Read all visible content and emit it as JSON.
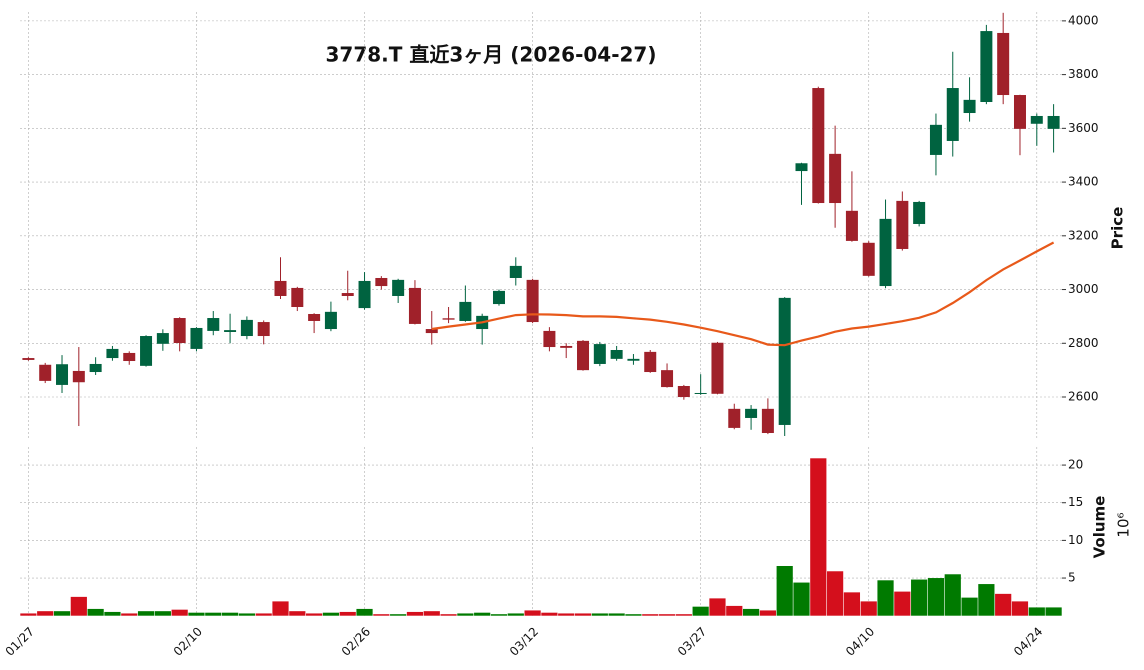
{
  "chart_data": {
    "type": "candlestick",
    "title": "3778.T  直近3ヶ月  (2026-04-27)",
    "categories": [
      "01/27",
      null,
      null,
      null,
      null,
      null,
      null,
      null,
      null,
      null,
      "02/10",
      null,
      null,
      null,
      null,
      null,
      null,
      null,
      null,
      null,
      "02/26",
      null,
      null,
      null,
      null,
      null,
      null,
      null,
      null,
      null,
      "03/12",
      null,
      null,
      null,
      null,
      null,
      null,
      null,
      null,
      null,
      "03/27",
      null,
      null,
      null,
      null,
      null,
      null,
      null,
      null,
      null,
      "04/10",
      null,
      null,
      null,
      null,
      null,
      null,
      null,
      null,
      null,
      "04/24",
      null
    ],
    "open": [
      2745,
      2720,
      2645,
      2697,
      2693,
      2745,
      2764,
      2716,
      2798,
      2894,
      2779,
      2846,
      2842,
      2827,
      2879,
      3032,
      3006,
      2909,
      2853,
      2987,
      2931,
      3043,
      2976,
      3006,
      2853,
      2893,
      2883,
      2853,
      2946,
      3043,
      3036,
      2846,
      2790,
      2809,
      2723,
      2742,
      2735,
      2768,
      2700,
      2641,
      2612,
      2802,
      2556,
      2522,
      2556,
      2496,
      3441,
      3750,
      3505,
      3293,
      3174,
      3013,
      3330,
      3244,
      3501,
      3553,
      3657,
      3698,
      3955,
      3724,
      3617,
      3598
    ],
    "high": [
      2748,
      2727,
      2756,
      2786,
      2748,
      2790,
      2770,
      2830,
      2852,
      2897,
      2860,
      2920,
      2910,
      2900,
      2885,
      3120,
      3010,
      2912,
      2955,
      3070,
      3065,
      3050,
      3040,
      3035,
      2920,
      2935,
      3015,
      2910,
      3000,
      3120,
      3040,
      2860,
      2800,
      2812,
      2805,
      2790,
      2760,
      2775,
      2725,
      2645,
      2685,
      2805,
      2575,
      2570,
      2595,
      2972,
      3472,
      3755,
      3610,
      3440,
      3180,
      3335,
      3365,
      3330,
      3655,
      3885,
      3790,
      3985,
      4030,
      3725,
      3655,
      3690
    ],
    "low": [
      2735,
      2652,
      2615,
      2492,
      2682,
      2735,
      2720,
      2713,
      2772,
      2770,
      2770,
      2830,
      2800,
      2815,
      2796,
      2965,
      2920,
      2838,
      2845,
      2960,
      2925,
      3000,
      2950,
      2870,
      2795,
      2875,
      2880,
      2795,
      2940,
      3015,
      2875,
      2770,
      2745,
      2698,
      2715,
      2735,
      2720,
      2690,
      2635,
      2590,
      2608,
      2610,
      2480,
      2478,
      2462,
      2455,
      3315,
      3320,
      3230,
      3178,
      3048,
      3005,
      3145,
      3235,
      3425,
      3495,
      3625,
      3690,
      3690,
      3500,
      3535,
      3510
    ],
    "close": [
      2738,
      2660,
      2722,
      2655,
      2723,
      2779,
      2734,
      2827,
      2838,
      2801,
      2857,
      2894,
      2849,
      2887,
      2827,
      2976,
      2935,
      2883,
      2917,
      2976,
      3032,
      3013,
      3036,
      2872,
      2838,
      2888,
      2954,
      2902,
      2995,
      3088,
      2879,
      2786,
      2783,
      2700,
      2797,
      2775,
      2742,
      2693,
      2637,
      2600,
      2615,
      2612,
      2485,
      2556,
      2466,
      2969,
      3470,
      3322,
      3322,
      3181,
      3051,
      3263,
      3151,
      3326,
      3613,
      3750,
      3706,
      3962,
      3724,
      3598,
      3646,
      3646
    ],
    "up_color": "#006340",
    "down_color": "#a0212a",
    "moving_average": {
      "color": "#e8591a",
      "values": [
        null,
        null,
        null,
        null,
        null,
        null,
        null,
        null,
        null,
        null,
        null,
        null,
        null,
        null,
        null,
        null,
        null,
        null,
        null,
        null,
        null,
        null,
        null,
        null,
        2853,
        2862,
        2870,
        2878,
        2892,
        2905,
        2908,
        2907,
        2905,
        2900,
        2900,
        2898,
        2893,
        2888,
        2880,
        2870,
        2858,
        2845,
        2830,
        2815,
        2795,
        2793,
        2810,
        2825,
        2843,
        2855,
        2862,
        2872,
        2882,
        2895,
        2915,
        2950,
        2990,
        3035,
        3075,
        3108,
        3142,
        3175
      ]
    },
    "ylabel": "Price",
    "ylim": [
      2440,
      4033
    ],
    "yticks": [
      2600,
      2800,
      3000,
      3200,
      3400,
      3600,
      3800,
      4000
    ],
    "grid": true,
    "volume": {
      "ylabel": "Volume",
      "scale_label": "10⁶",
      "up_color": "#007a00",
      "down_color": "#d40f1c",
      "values": [
        0.3,
        0.6,
        0.6,
        2.5,
        0.9,
        0.5,
        0.3,
        0.6,
        0.6,
        0.8,
        0.4,
        0.4,
        0.4,
        0.3,
        0.3,
        1.9,
        0.6,
        0.3,
        0.4,
        0.5,
        0.9,
        0.2,
        0.2,
        0.5,
        0.6,
        0.2,
        0.3,
        0.4,
        0.2,
        0.3,
        0.7,
        0.4,
        0.3,
        0.3,
        0.3,
        0.3,
        0.2,
        0.2,
        0.2,
        0.2,
        1.2,
        2.3,
        1.3,
        0.9,
        0.7,
        6.6,
        4.4,
        20.9,
        5.9,
        3.1,
        1.9,
        4.7,
        3.2,
        4.8,
        5.0,
        5.5,
        2.4,
        4.2,
        2.9,
        1.9,
        1.1,
        1.1
      ],
      "ylim": [
        0,
        22.4
      ],
      "yticks": [
        5,
        10,
        15,
        20
      ]
    }
  }
}
